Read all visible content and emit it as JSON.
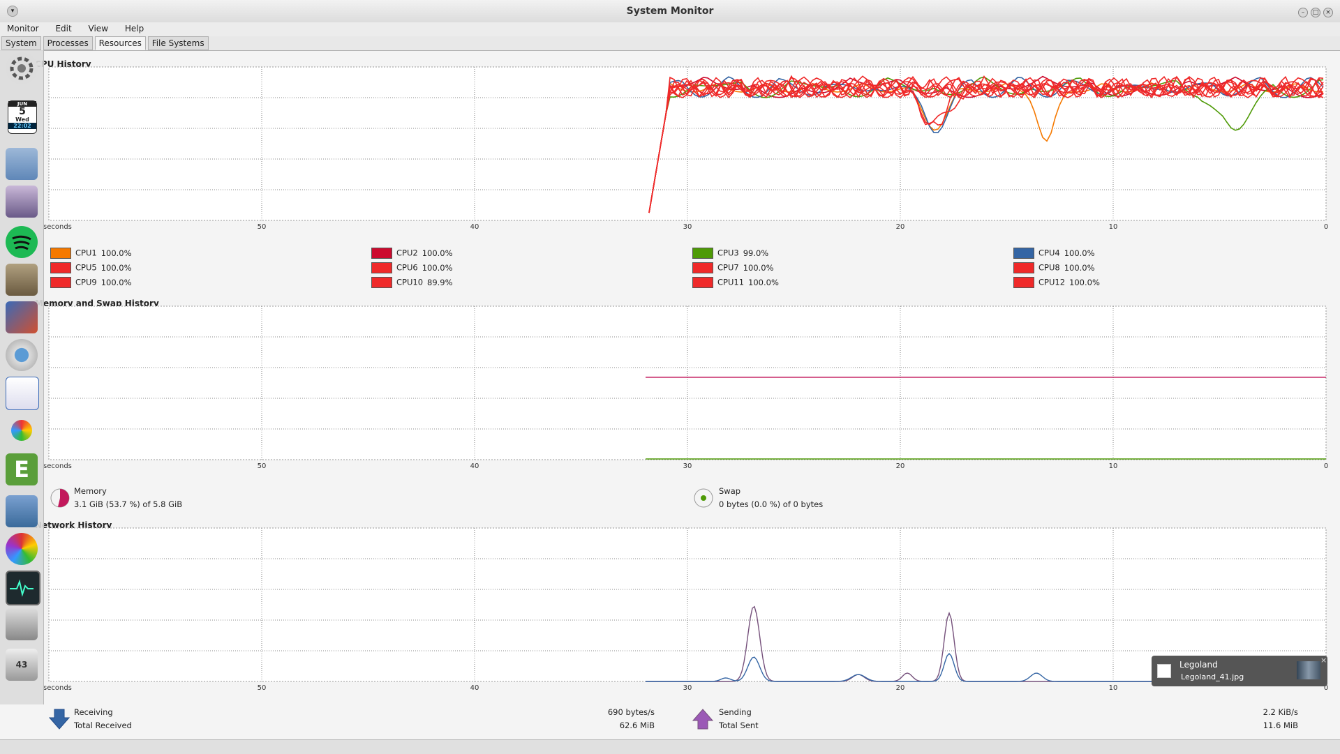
{
  "window": {
    "title": "System Monitor"
  },
  "menu": [
    "Monitor",
    "Edit",
    "View",
    "Help"
  ],
  "tabs": [
    "System",
    "Processes",
    "Resources",
    "File Systems"
  ],
  "active_tab": "Resources",
  "cpu": {
    "title": "CPU History",
    "axis_ticks": [
      "seconds",
      "50",
      "40",
      "30",
      "20",
      "10",
      "0"
    ],
    "cores": [
      {
        "name": "CPU1",
        "value": "100.0%",
        "color": "#f57900"
      },
      {
        "name": "CPU2",
        "value": "100.0%",
        "color": "#cc0a2e"
      },
      {
        "name": "CPU3",
        "value": "99.0%",
        "color": "#4e9a06"
      },
      {
        "name": "CPU4",
        "value": "100.0%",
        "color": "#3465a4"
      },
      {
        "name": "CPU5",
        "value": "100.0%",
        "color": "#ef2929"
      },
      {
        "name": "CPU6",
        "value": "100.0%",
        "color": "#ef2929"
      },
      {
        "name": "CPU7",
        "value": "100.0%",
        "color": "#ef2929"
      },
      {
        "name": "CPU8",
        "value": "100.0%",
        "color": "#ef2929"
      },
      {
        "name": "CPU9",
        "value": "100.0%",
        "color": "#ef2929"
      },
      {
        "name": "CPU10",
        "value": "89.9%",
        "color": "#ef2929"
      },
      {
        "name": "CPU11",
        "value": "100.0%",
        "color": "#ef2929"
      },
      {
        "name": "CPU12",
        "value": "100.0%",
        "color": "#ef2929"
      }
    ]
  },
  "memory": {
    "title": "Memory and Swap History",
    "axis_ticks": [
      "seconds",
      "50",
      "40",
      "30",
      "20",
      "10",
      "0"
    ],
    "mem_label": "Memory",
    "mem_value": "3.1 GiB (53.7 %) of 5.8 GiB",
    "mem_color": "#c2185b",
    "swap_label": "Swap",
    "swap_value": "0 bytes (0.0 %) of 0 bytes",
    "swap_color": "#4e9a06"
  },
  "network": {
    "title": "Network History",
    "axis_ticks": [
      "seconds",
      "50",
      "40",
      "30",
      "20",
      "10",
      "0"
    ],
    "receiving_label": "Receiving",
    "receiving_value": "690 bytes/s",
    "total_received_label": "Total Received",
    "total_received_value": "62.6 MiB",
    "sending_label": "Sending",
    "sending_value": "2.2 KiB/s",
    "total_sent_label": "Total Sent",
    "total_sent_value": "11.6 MiB",
    "recv_color": "#3465a4",
    "send_color": "#75507b"
  },
  "notification": {
    "title": "Legoland",
    "file": "Legoland_41.jpg"
  },
  "dock": {
    "date_day": "5",
    "date_weekday": "Wed",
    "date_time": "22:02",
    "trash_count": "43"
  }
}
